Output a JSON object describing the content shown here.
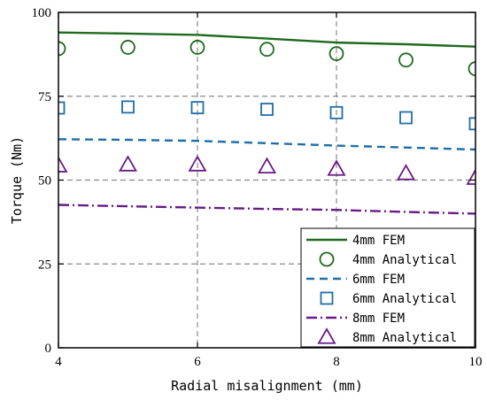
{
  "chart_data": {
    "type": "line",
    "xlabel": "Radial misalignment (mm)",
    "ylabel": "Torque (Nm)",
    "xlim": [
      4,
      10
    ],
    "ylim": [
      0,
      100
    ],
    "xticks": [
      "4",
      "6",
      "8",
      "10"
    ],
    "yticks": [
      "0",
      "25",
      "50",
      "75",
      "100"
    ],
    "grid": "dashed, at x = 6, 8 and y = 25, 50, 75",
    "legend_position": "bottom-right",
    "series": [
      {
        "name": "4mm FEM",
        "kind": "line",
        "style": "solid",
        "color": "#1e6b1e",
        "x": [
          4,
          5,
          6,
          7,
          8,
          9,
          10
        ],
        "y": [
          94.0,
          93.7,
          93.3,
          92.2,
          91.0,
          90.5,
          89.8
        ]
      },
      {
        "name": "4mm Analytical",
        "kind": "marker",
        "marker": "circle",
        "color": "#1e6b1e",
        "x": [
          4,
          5,
          6,
          7,
          8,
          9,
          10
        ],
        "y": [
          89.2,
          89.6,
          89.6,
          89.0,
          87.7,
          85.8,
          83.2
        ]
      },
      {
        "name": "6mm FEM",
        "kind": "line",
        "style": "dashed",
        "color": "#1f6ea7",
        "x": [
          4,
          5,
          6,
          7,
          8,
          9,
          10
        ],
        "y": [
          62.2,
          62.0,
          61.7,
          61.0,
          60.3,
          59.7,
          59.1
        ]
      },
      {
        "name": "6mm Analytical",
        "kind": "marker",
        "marker": "square",
        "color": "#1f6ea7",
        "x": [
          4,
          5,
          6,
          7,
          8,
          9,
          10
        ],
        "y": [
          71.5,
          71.8,
          71.6,
          71.1,
          70.1,
          68.6,
          66.8
        ]
      },
      {
        "name": "8mm FEM",
        "kind": "line",
        "style": "dashdot",
        "color": "#6a1b86",
        "x": [
          4,
          5,
          6,
          7,
          8,
          9,
          10
        ],
        "y": [
          42.6,
          42.2,
          41.8,
          41.4,
          41.1,
          40.5,
          40.0
        ]
      },
      {
        "name": "8mm Analytical",
        "kind": "marker",
        "marker": "triangle",
        "color": "#6a1b86",
        "x": [
          4,
          5,
          6,
          7,
          8,
          9,
          10
        ],
        "y": [
          54.3,
          54.6,
          54.6,
          54.0,
          53.3,
          52.0,
          50.6
        ]
      }
    ]
  }
}
